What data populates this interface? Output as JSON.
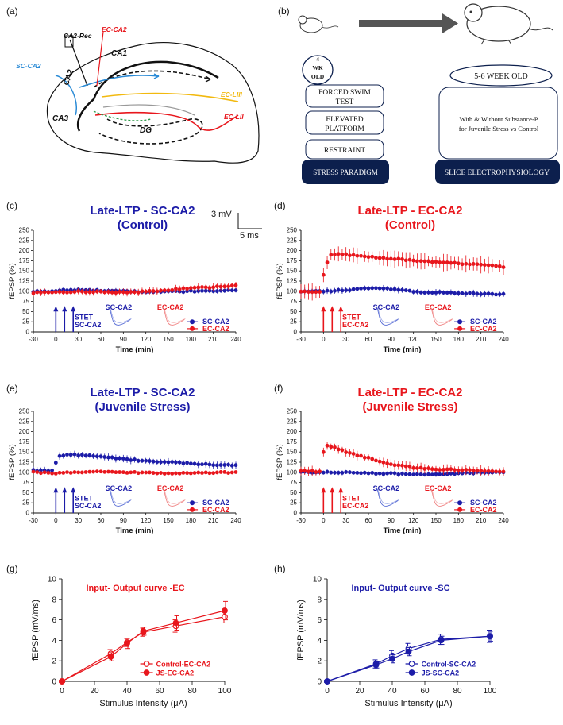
{
  "colors": {
    "blue": "#1c1ca8",
    "red": "#e8161c",
    "dark_navy": "#0c1f4d",
    "yellow": "#f2b90f",
    "green": "#2e9b4a",
    "grey": "#999999",
    "lightblue": "#2b8bd6"
  },
  "panels": {
    "a": "(a)",
    "b": "(b)",
    "c": "(c)",
    "d": "(d)",
    "e": "(e)",
    "f": "(f)",
    "g": "(g)",
    "h": "(h)"
  },
  "diagram_a": {
    "labels": {
      "ca2_rec": "CA2-Rec",
      "ec_ca2": "EC-CA2",
      "ca1": "CA1",
      "sc_ca2": "SC-CA2",
      "ca2": "CA2",
      "ca3": "CA3",
      "ec_liii": "EC-LIII",
      "ec_lii": "EC-LII",
      "dg": "DG"
    }
  },
  "diagram_b": {
    "age_small": "4 WK OLD",
    "age_large": "5-6 WEEK OLD",
    "boxes": [
      "FORCED SWIM TEST",
      "ELEVATED PLATFORM",
      "RESTRAINT"
    ],
    "stress_label": "STRESS PARADIGM",
    "slice_text": "With & Without Substance-P for Juvenile Stress vs Control",
    "slice_label": "SLICE ELECTROPHYSIOLOGY"
  },
  "scale_bar": {
    "mv": "3 mV",
    "ms": "5 ms"
  },
  "chart_data": [
    {
      "id": "c",
      "type": "line",
      "title": "Late-LTP - SC-CA2",
      "subtitle": "(Control)",
      "title_color": "blue",
      "xlabel": "Time (min)",
      "ylabel": "fEPSP (%)",
      "xlim": [
        -30,
        240
      ],
      "ylim": [
        0,
        250
      ],
      "xticks": [
        -30,
        0,
        30,
        60,
        90,
        120,
        150,
        180,
        210,
        240
      ],
      "yticks": [
        0,
        25,
        50,
        75,
        100,
        125,
        150,
        175,
        200,
        225,
        250
      ],
      "stet_color": "blue",
      "stet_label_1": "STET",
      "stet_label_2": "SC-CA2",
      "stet_times": [
        0,
        10,
        20
      ],
      "trace_labels": [
        "SC-CA2",
        "EC-CA2"
      ],
      "series": [
        {
          "name": "SC-CA2",
          "color": "blue",
          "anchors": [
            [
              -30,
              100
            ],
            [
              -5,
              100
            ],
            [
              0,
              102
            ],
            [
              30,
              103
            ],
            [
              60,
              102
            ],
            [
              90,
              100
            ],
            [
              120,
              98
            ],
            [
              150,
              99
            ],
            [
              180,
              100
            ],
            [
              210,
              101
            ],
            [
              240,
              102
            ]
          ],
          "err": 6
        },
        {
          "name": "EC-CA2",
          "color": "red",
          "anchors": [
            [
              -30,
              96
            ],
            [
              -5,
              97
            ],
            [
              0,
              98
            ],
            [
              30,
              99
            ],
            [
              60,
              98
            ],
            [
              90,
              97
            ],
            [
              120,
              99
            ],
            [
              150,
              103
            ],
            [
              180,
              108
            ],
            [
              210,
              110
            ],
            [
              240,
              114
            ]
          ],
          "err": 9
        }
      ],
      "legend": [
        "SC-CA2",
        "EC-CA2"
      ]
    },
    {
      "id": "d",
      "type": "line",
      "title": "Late-LTP - EC-CA2",
      "subtitle": "(Control)",
      "title_color": "red",
      "xlabel": "Time (min)",
      "ylabel": "fEPSP (%)",
      "xlim": [
        -30,
        240
      ],
      "ylim": [
        0,
        250
      ],
      "xticks": [
        -30,
        0,
        30,
        60,
        90,
        120,
        150,
        180,
        210,
        240
      ],
      "yticks": [
        0,
        25,
        50,
        75,
        100,
        125,
        150,
        175,
        200,
        225,
        250
      ],
      "stet_color": "red",
      "stet_label_1": "STET",
      "stet_label_2": "EC-CA2",
      "stet_times": [
        0,
        10,
        20
      ],
      "trace_labels": [
        "SC-CA2",
        "EC-CA2"
      ],
      "series": [
        {
          "name": "SC-CA2",
          "color": "blue",
          "anchors": [
            [
              -30,
              100
            ],
            [
              -5,
              100
            ],
            [
              0,
              100
            ],
            [
              30,
              103
            ],
            [
              60,
              107
            ],
            [
              80,
              108
            ],
            [
              100,
              103
            ],
            [
              120,
              99
            ],
            [
              150,
              97
            ],
            [
              180,
              96
            ],
            [
              210,
              94
            ],
            [
              240,
              92
            ]
          ],
          "err": 8
        },
        {
          "name": "EC-CA2",
          "color": "red",
          "anchors": [
            [
              -30,
              100
            ],
            [
              -5,
              99
            ],
            [
              0,
              140
            ],
            [
              5,
              170
            ],
            [
              10,
              190
            ],
            [
              20,
              193
            ],
            [
              40,
              188
            ],
            [
              60,
              185
            ],
            [
              90,
              180
            ],
            [
              120,
              176
            ],
            [
              150,
              172
            ],
            [
              180,
              168
            ],
            [
              210,
              166
            ],
            [
              240,
              160
            ]
          ],
          "err": 20
        }
      ],
      "legend": [
        "SC-CA2",
        "EC-CA2"
      ]
    },
    {
      "id": "e",
      "type": "line",
      "title": "Late-LTP - SC-CA2",
      "subtitle": "(Juvenile Stress)",
      "title_color": "blue",
      "xlabel": "Time (min)",
      "ylabel": "fEPSP (%)",
      "xlim": [
        -30,
        240
      ],
      "ylim": [
        0,
        250
      ],
      "xticks": [
        -30,
        0,
        30,
        60,
        90,
        120,
        150,
        180,
        210,
        240
      ],
      "yticks": [
        0,
        25,
        50,
        75,
        100,
        125,
        150,
        175,
        200,
        225,
        250
      ],
      "stet_color": "blue",
      "stet_label_1": "STET",
      "stet_label_2": "SC-CA2",
      "stet_times": [
        0,
        10,
        20
      ],
      "trace_labels": [
        "SC-CA2",
        "EC-CA2"
      ],
      "series": [
        {
          "name": "SC-CA2",
          "color": "blue",
          "anchors": [
            [
              -30,
              105
            ],
            [
              -5,
              104
            ],
            [
              0,
              125
            ],
            [
              5,
              140
            ],
            [
              15,
              143
            ],
            [
              30,
              143
            ],
            [
              60,
              138
            ],
            [
              90,
              133
            ],
            [
              120,
              128
            ],
            [
              150,
              125
            ],
            [
              180,
              122
            ],
            [
              210,
              119
            ],
            [
              240,
              117
            ]
          ],
          "err": 9
        },
        {
          "name": "EC-CA2",
          "color": "red",
          "anchors": [
            [
              -30,
              100
            ],
            [
              -5,
              98
            ],
            [
              0,
              98
            ],
            [
              30,
              101
            ],
            [
              60,
              101
            ],
            [
              90,
              100
            ],
            [
              120,
              99
            ],
            [
              150,
              97
            ],
            [
              180,
              98
            ],
            [
              210,
              99
            ],
            [
              240,
              100
            ]
          ],
          "err": 4
        }
      ],
      "legend": [
        "SC-CA2",
        "EC-CA2"
      ]
    },
    {
      "id": "f",
      "type": "line",
      "title": "Late-LTP - EC-CA2",
      "subtitle": "(Juvenile Stress)",
      "title_color": "red",
      "xlabel": "Time (min)",
      "ylabel": "fEPSP (%)",
      "xlim": [
        -30,
        240
      ],
      "ylim": [
        0,
        250
      ],
      "xticks": [
        -30,
        0,
        30,
        60,
        90,
        120,
        150,
        180,
        210,
        240
      ],
      "yticks": [
        0,
        25,
        50,
        75,
        100,
        125,
        150,
        175,
        200,
        225,
        250
      ],
      "stet_color": "red",
      "stet_label_1": "STET",
      "stet_label_2": "EC-CA2",
      "stet_times": [
        0,
        10,
        20
      ],
      "trace_labels": [
        "SC-CA2",
        "EC-CA2"
      ],
      "series": [
        {
          "name": "SC-CA2",
          "color": "blue",
          "anchors": [
            [
              -30,
              100
            ],
            [
              -5,
              100
            ],
            [
              0,
              100
            ],
            [
              30,
              100
            ],
            [
              60,
              98
            ],
            [
              90,
              97
            ],
            [
              120,
              95
            ],
            [
              150,
              94
            ],
            [
              180,
              97
            ],
            [
              210,
              100
            ],
            [
              240,
              101
            ]
          ],
          "err": 6
        },
        {
          "name": "EC-CA2",
          "color": "red",
          "anchors": [
            [
              -30,
              103
            ],
            [
              -5,
              102
            ],
            [
              0,
              150
            ],
            [
              5,
              165
            ],
            [
              15,
              160
            ],
            [
              30,
              150
            ],
            [
              60,
              135
            ],
            [
              90,
              120
            ],
            [
              120,
              112
            ],
            [
              150,
              108
            ],
            [
              180,
              106
            ],
            [
              210,
              103
            ],
            [
              240,
              103
            ]
          ],
          "err": 12
        }
      ],
      "legend": [
        "SC-CA2",
        "EC-CA2"
      ]
    },
    {
      "id": "g",
      "type": "line",
      "title": "Input- Output  curve -EC",
      "title_color": "red",
      "xlabel": "Stimulus Intensity (μA)",
      "ylabel": "fEPSP (mV/ms)",
      "xlim": [
        0,
        100
      ],
      "ylim": [
        0,
        10
      ],
      "xticks": [
        0,
        20,
        40,
        60,
        80,
        100
      ],
      "yticks": [
        0,
        2,
        4,
        6,
        8,
        10
      ],
      "x": [
        0,
        30,
        40,
        50,
        70,
        100
      ],
      "series": [
        {
          "name": "Control-EC-CA2",
          "color": "red",
          "marker": "open",
          "values": [
            0,
            2.7,
            3.8,
            4.8,
            5.4,
            6.3
          ],
          "err": [
            0.1,
            0.4,
            0.4,
            0.4,
            0.6,
            0.6
          ]
        },
        {
          "name": "JS-EC-CA2",
          "color": "red",
          "marker": "filled",
          "values": [
            0,
            2.4,
            3.7,
            4.9,
            5.7,
            6.9
          ],
          "err": [
            0.1,
            0.4,
            0.5,
            0.4,
            0.7,
            0.9
          ]
        }
      ],
      "legend": [
        "Control-EC-CA2",
        "JS-EC-CA2"
      ]
    },
    {
      "id": "h",
      "type": "line",
      "title": "Input- Output  curve -SC",
      "title_color": "blue",
      "xlabel": "Stimulus Intensity (μA)",
      "ylabel": "fEPSP (mV/ms)",
      "xlim": [
        0,
        100
      ],
      "ylim": [
        0,
        10
      ],
      "xticks": [
        0,
        20,
        40,
        60,
        80,
        100
      ],
      "yticks": [
        0,
        2,
        4,
        6,
        8,
        10
      ],
      "x": [
        0,
        30,
        40,
        50,
        70,
        100
      ],
      "series": [
        {
          "name": "Control-SC-CA2",
          "color": "blue",
          "marker": "open",
          "values": [
            0,
            1.7,
            2.5,
            3.2,
            4.1,
            4.4
          ],
          "err": [
            0.1,
            0.4,
            0.5,
            0.5,
            0.5,
            0.6
          ]
        },
        {
          "name": "JS-SC-CA2",
          "color": "blue",
          "marker": "filled",
          "values": [
            0,
            1.6,
            2.2,
            2.9,
            4.0,
            4.4
          ],
          "err": [
            0.1,
            0.3,
            0.4,
            0.4,
            0.4,
            0.5
          ]
        }
      ],
      "legend": [
        "Control-SC-CA2",
        "JS-SC-CA2"
      ]
    }
  ]
}
